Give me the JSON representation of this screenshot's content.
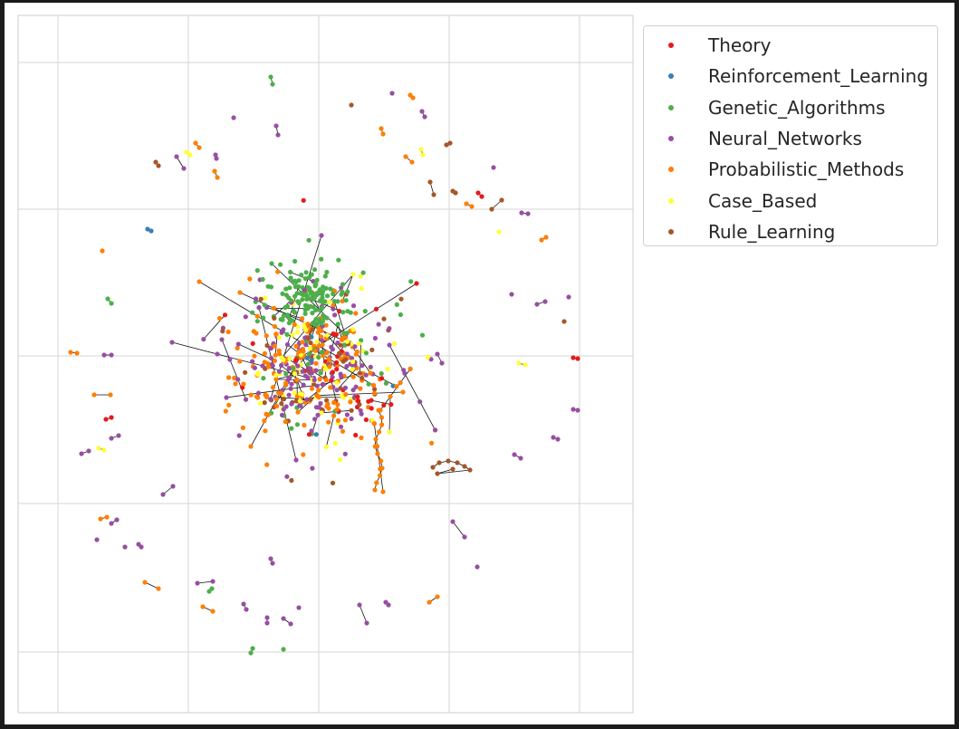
{
  "chart_data": {
    "type": "scatter",
    "subtype": "network-graph",
    "title": "",
    "xlabel": "",
    "ylabel": "",
    "grid": true,
    "legend_position": "outside-upper-right",
    "series": [
      {
        "name": "Theory",
        "color": "#e41a1c"
      },
      {
        "name": "Reinforcement_Learning",
        "color": "#377eb8"
      },
      {
        "name": "Genetic_Algorithms",
        "color": "#4daf4a"
      },
      {
        "name": "Neural_Networks",
        "color": "#984ea3"
      },
      {
        "name": "Probabilistic_Methods",
        "color": "#ff7f00"
      },
      {
        "name": "Case_Based",
        "color": "#ffff33"
      },
      {
        "name": "Rule_Learning",
        "color": "#a65628"
      }
    ]
  }
}
